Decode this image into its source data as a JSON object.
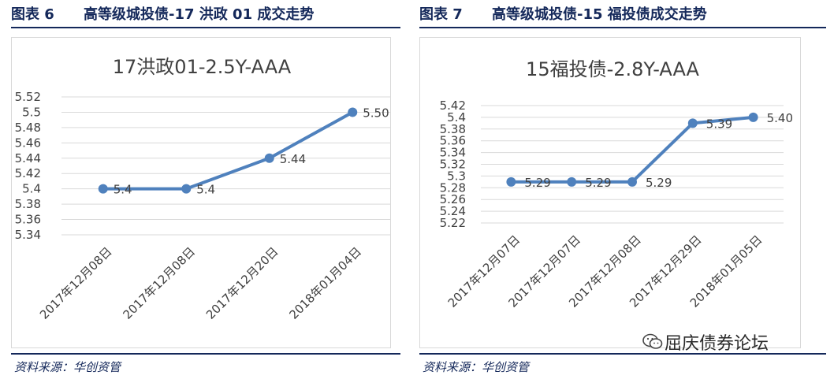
{
  "figures": [
    {
      "label": "图表 6",
      "title": "高等级城投债-17 洪政 01 成交走势",
      "source": "资料来源：华创资管"
    },
    {
      "label": "图表 7",
      "title": "高等级城投债-15 福投债成交走势",
      "source": "资料来源：华创资管"
    }
  ],
  "watermark": "屈庆债券论坛",
  "chart_data": [
    {
      "type": "line",
      "title": "17洪政01-2.5Y-AAA",
      "categories": [
        "2017年12月08日",
        "2017年12月08日",
        "2017年12月20日",
        "2018年01月04日"
      ],
      "values": [
        5.4,
        5.4,
        5.44,
        5.5
      ],
      "data_labels": [
        "5.4",
        "5.4",
        "5.44",
        "5.50"
      ],
      "ylim": [
        5.34,
        5.52
      ],
      "yticks": [
        "5.34",
        "5.36",
        "5.38",
        "5.4",
        "5.42",
        "5.44",
        "5.46",
        "5.48",
        "5.5",
        "5.52"
      ],
      "grid": true,
      "color": "#4f81bd"
    },
    {
      "type": "line",
      "title": "15福投债-2.8Y-AAA",
      "categories": [
        "2017年12月07日",
        "2017年12月07日",
        "2017年12月08日",
        "2017年12月29日",
        "2018年01月05日"
      ],
      "values": [
        5.29,
        5.29,
        5.29,
        5.39,
        5.4
      ],
      "data_labels": [
        "5.29",
        "5.29",
        "5.29",
        "5.39",
        "5.40"
      ],
      "ylim": [
        5.22,
        5.42
      ],
      "yticks": [
        "5.22",
        "5.24",
        "5.26",
        "5.28",
        "5.3",
        "5.32",
        "5.34",
        "5.36",
        "5.38",
        "5.4",
        "5.42"
      ],
      "grid": true,
      "color": "#4f81bd"
    }
  ]
}
